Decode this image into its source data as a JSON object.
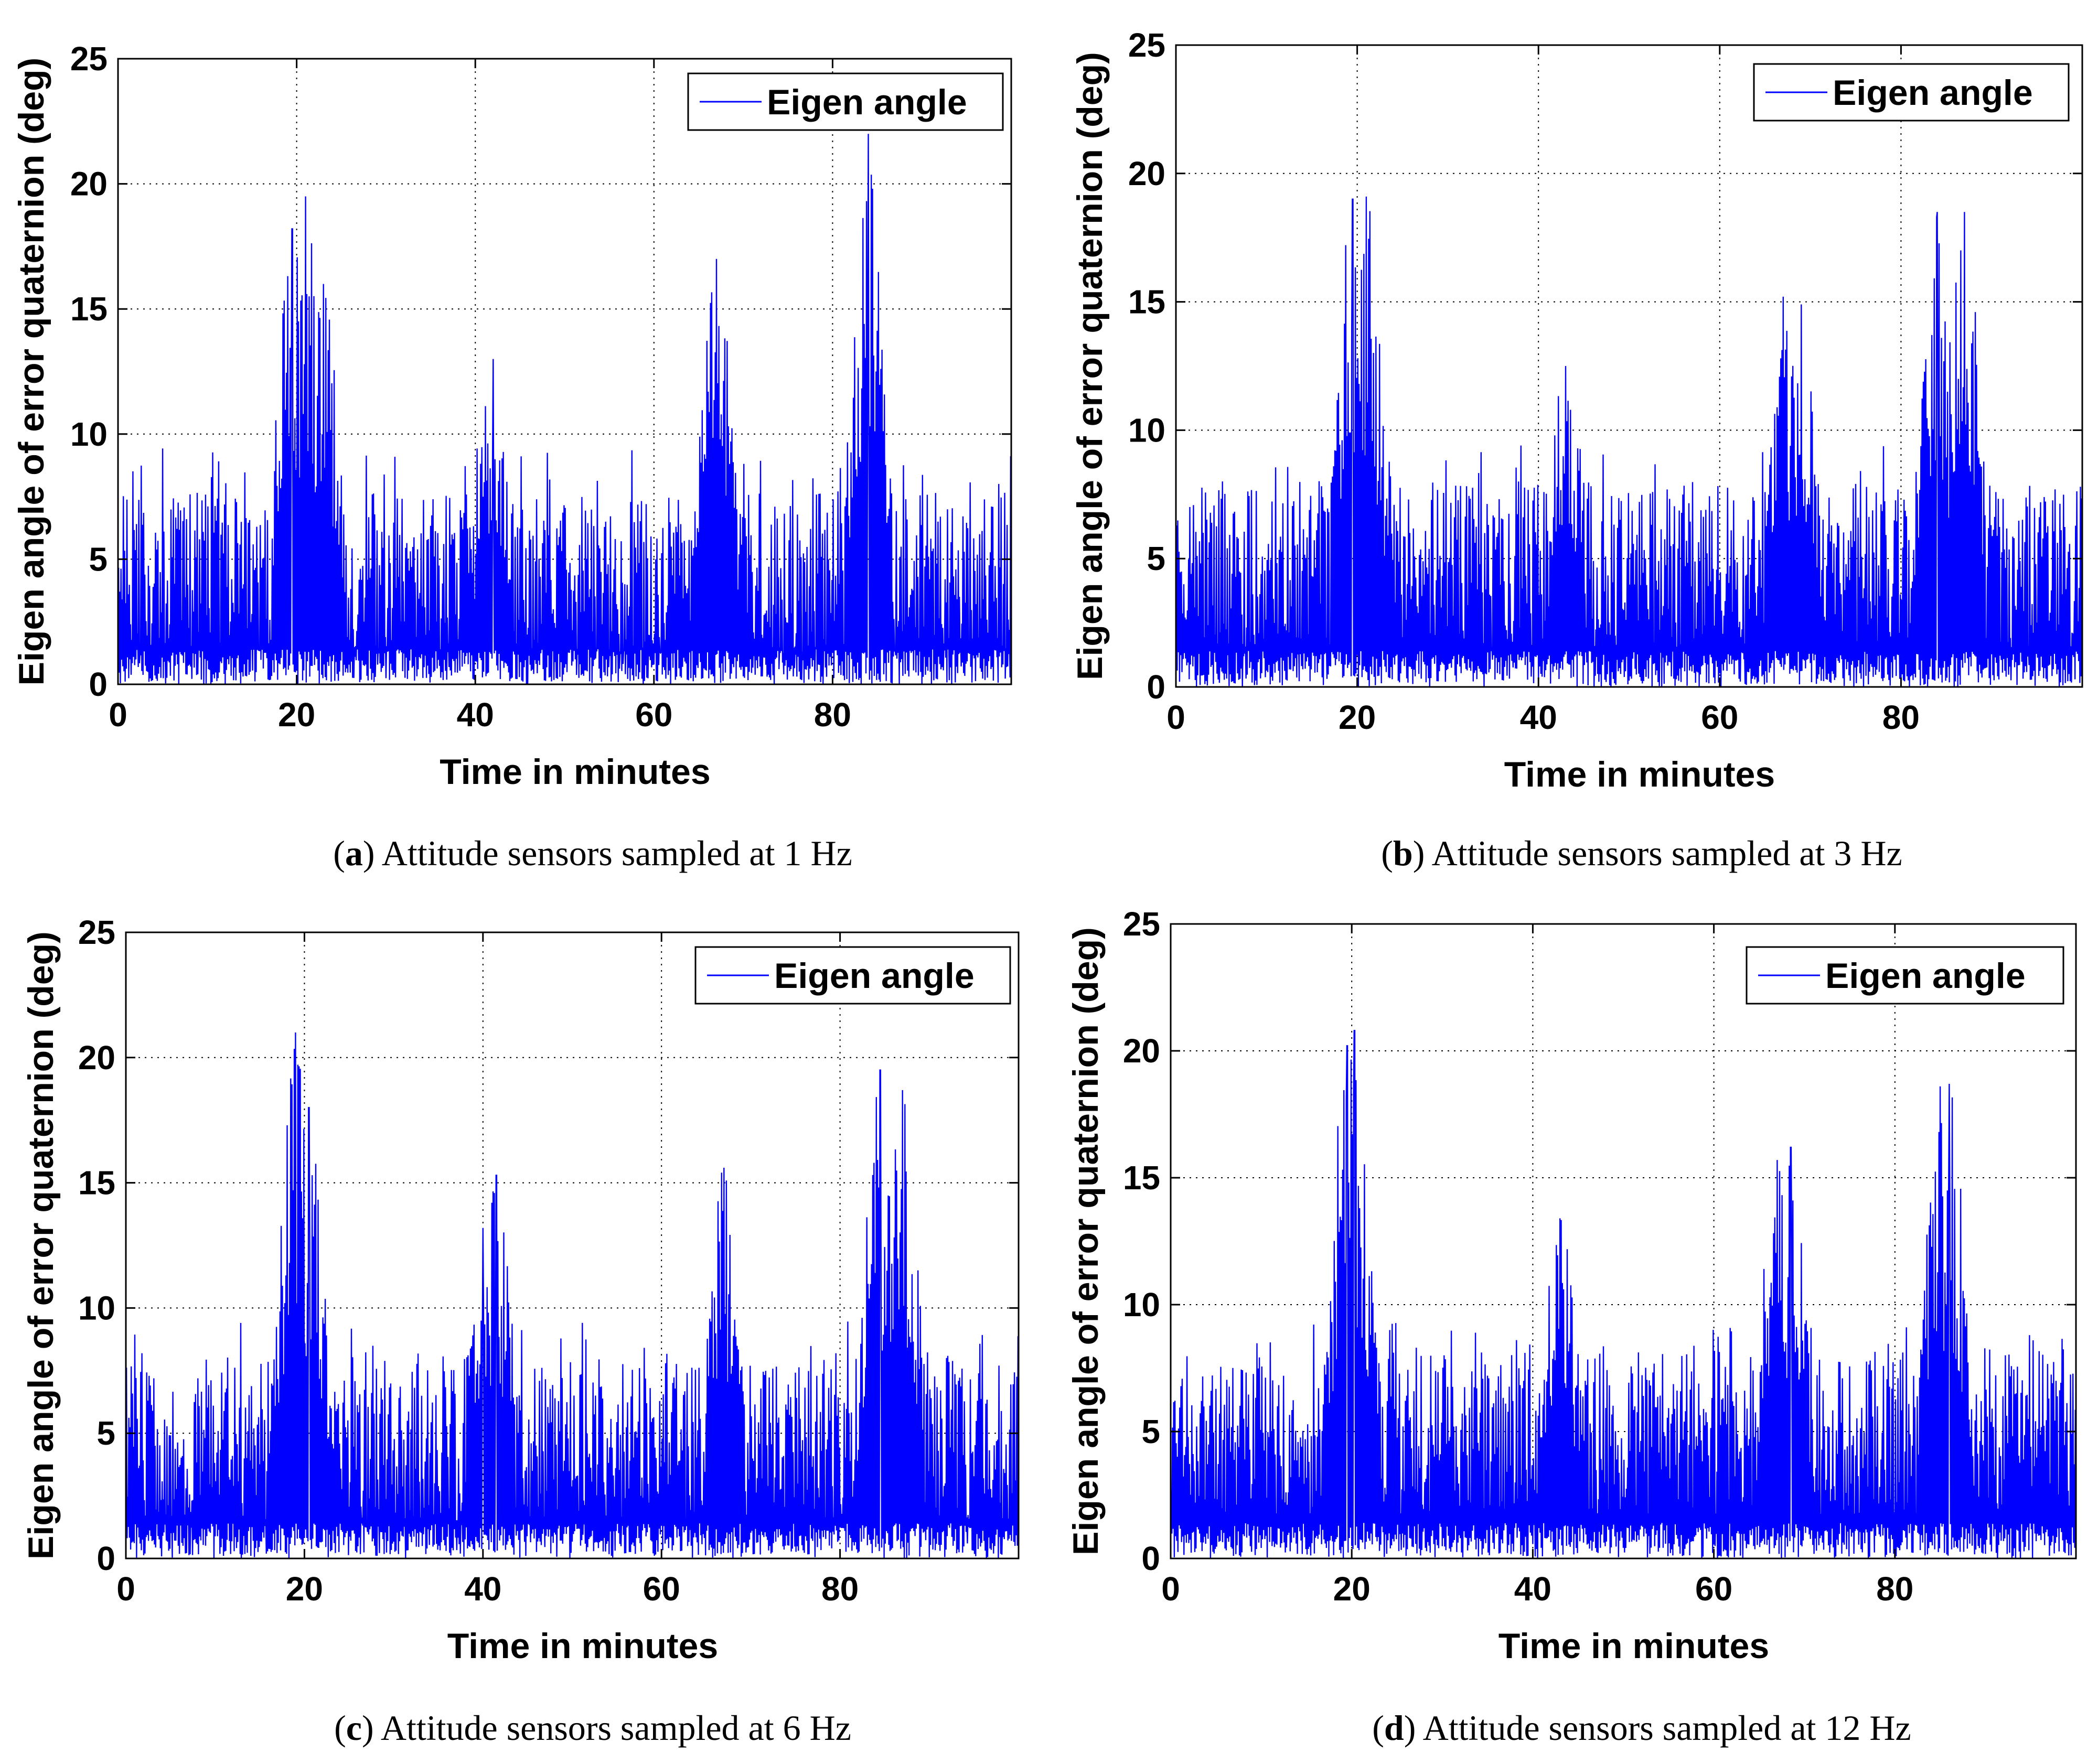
{
  "chart_data": [
    {
      "type": "line",
      "panel": "a",
      "caption_letter": "a",
      "caption_text": "Attitude sensors sampled at 1 Hz",
      "xlabel": "Time in minutes",
      "ylabel": "Eigen angle of error quaternion (deg)",
      "xlim": [
        0,
        100
      ],
      "ylim": [
        0,
        25
      ],
      "xticks": [
        "0",
        "20",
        "40",
        "60",
        "80"
      ],
      "yticks": [
        "0",
        "5",
        "10",
        "15",
        "20",
        "25"
      ],
      "grid": true,
      "legend": {
        "label": "Eigen angle",
        "position": "top-right"
      },
      "line_color": "#0000ff",
      "series": [
        {
          "name": "Eigen angle",
          "baseline_mean": 3.5,
          "baseline_max": 8,
          "overall_max": 22.0,
          "peaks": [
            {
              "x": 19.5,
              "y": 18.2
            },
            {
              "x": 21,
              "y": 19.5
            },
            {
              "x": 23,
              "y": 16
            },
            {
              "x": 42,
              "y": 13
            },
            {
              "x": 67,
              "y": 17
            },
            {
              "x": 84,
              "y": 22.0
            }
          ]
        }
      ]
    },
    {
      "type": "line",
      "panel": "b",
      "caption_letter": "b",
      "caption_text": "Attitude sensors sampled at 3 Hz",
      "xlabel": "Time in minutes",
      "ylabel": "Eigen angle of error quaternion (deg)",
      "xlim": [
        0,
        100
      ],
      "ylim": [
        0,
        25
      ],
      "xticks": [
        "0",
        "20",
        "40",
        "60",
        "80"
      ],
      "yticks": [
        "0",
        "5",
        "10",
        "15",
        "20",
        "25"
      ],
      "grid": true,
      "legend": {
        "label": "Eigen angle",
        "position": "top-right"
      },
      "line_color": "#0000ff",
      "series": [
        {
          "name": "Eigen angle",
          "baseline_mean": 3.8,
          "baseline_max": 8,
          "overall_max": 19.2,
          "peaks": [
            {
              "x": 19.5,
              "y": 19
            },
            {
              "x": 21,
              "y": 19.1
            },
            {
              "x": 43,
              "y": 12.5
            },
            {
              "x": 67,
              "y": 15.2
            },
            {
              "x": 69,
              "y": 14.9
            },
            {
              "x": 84,
              "y": 18.5
            },
            {
              "x": 87,
              "y": 18.5
            }
          ]
        }
      ]
    },
    {
      "type": "line",
      "panel": "c",
      "caption_letter": "c",
      "caption_text": "Attitude sensors sampled at 6 Hz",
      "xlabel": "Time in minutes",
      "ylabel": "Eigen angle of error quaternion (deg)",
      "xlim": [
        0,
        100
      ],
      "ylim": [
        0,
        25
      ],
      "xticks": [
        "0",
        "20",
        "40",
        "60",
        "80"
      ],
      "yticks": [
        "0",
        "5",
        "10",
        "15",
        "20",
        "25"
      ],
      "grid": true,
      "legend": {
        "label": "Eigen angle",
        "position": "top-right"
      },
      "line_color": "#0000ff",
      "series": [
        {
          "name": "Eigen angle",
          "baseline_mean": 3.8,
          "baseline_max": 8,
          "overall_max": 21.0,
          "peaks": [
            {
              "x": 19,
              "y": 21.0
            },
            {
              "x": 20.5,
              "y": 18
            },
            {
              "x": 40,
              "y": 13.2
            },
            {
              "x": 41.5,
              "y": 15.3
            },
            {
              "x": 67,
              "y": 15.6
            },
            {
              "x": 84.5,
              "y": 19.5
            },
            {
              "x": 87,
              "y": 18.7
            }
          ]
        }
      ]
    },
    {
      "type": "line",
      "panel": "d",
      "caption_letter": "d",
      "caption_text": "Attitude sensors sampled at 12 Hz",
      "xlabel": "Time in minutes",
      "ylabel": "Eigen angle of error quaternion (deg)",
      "xlim": [
        0,
        100
      ],
      "ylim": [
        0,
        25
      ],
      "xticks": [
        "0",
        "20",
        "40",
        "60",
        "80"
      ],
      "yticks": [
        "0",
        "5",
        "10",
        "15",
        "20",
        "25"
      ],
      "grid": true,
      "legend": {
        "label": "Eigen angle",
        "position": "top-right"
      },
      "line_color": "#0000ff",
      "series": [
        {
          "name": "Eigen angle",
          "baseline_mean": 4.0,
          "baseline_max": 8,
          "overall_max": 20.8,
          "peaks": [
            {
              "x": 19.5,
              "y": 20.2
            },
            {
              "x": 20.3,
              "y": 20.8
            },
            {
              "x": 43,
              "y": 13.4
            },
            {
              "x": 67,
              "y": 15.7
            },
            {
              "x": 68.5,
              "y": 16.2
            },
            {
              "x": 85,
              "y": 18.6
            },
            {
              "x": 86,
              "y": 18.7
            }
          ]
        }
      ]
    }
  ]
}
